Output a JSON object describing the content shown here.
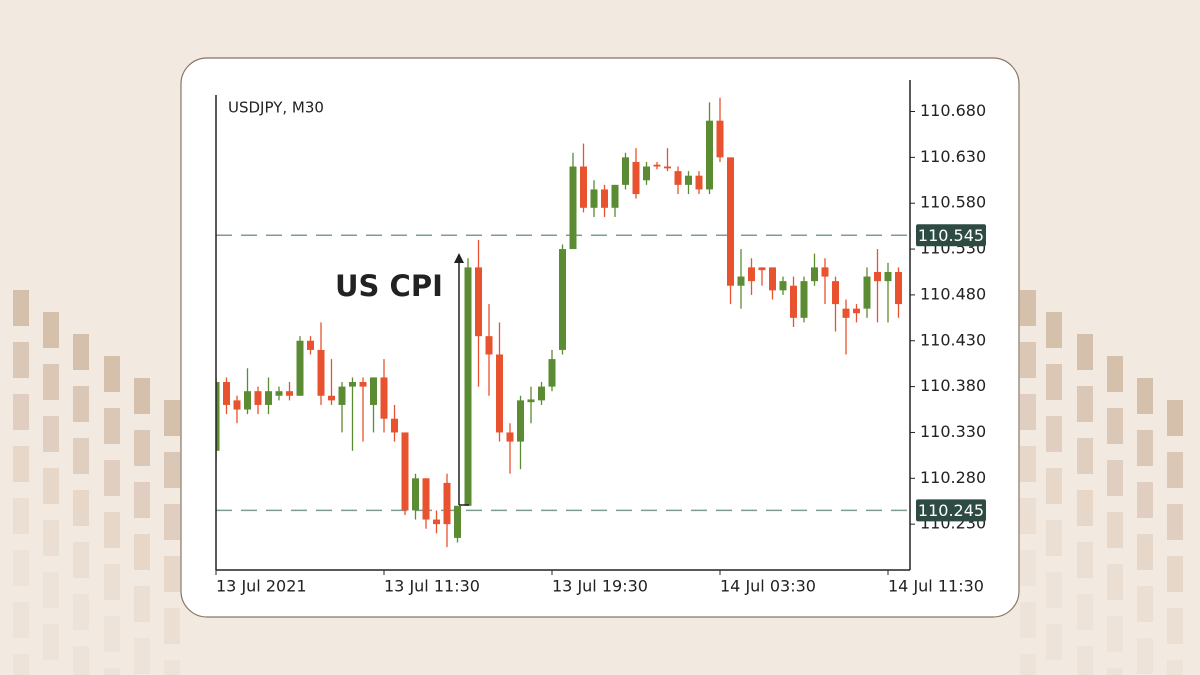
{
  "chart_data": {
    "type": "candlestick",
    "title": "USDJPY, M30",
    "annotation": "US CPI",
    "categories": [
      "13 Jul 2021",
      null,
      null,
      null,
      null,
      null,
      null,
      null,
      null,
      null,
      null,
      null,
      null,
      null,
      null,
      null,
      "13 Jul 11:30",
      null,
      null,
      null,
      null,
      null,
      null,
      null,
      null,
      null,
      null,
      null,
      null,
      null,
      null,
      null,
      "13 Jul 19:30",
      null,
      null,
      null,
      null,
      null,
      null,
      null,
      null,
      null,
      null,
      null,
      null,
      null,
      null,
      null,
      "14 Jul 03:30",
      null,
      null,
      null,
      null,
      null,
      null,
      null,
      null,
      null,
      null,
      null,
      null,
      null,
      null,
      null,
      "14 Jul 11:30",
      null
    ],
    "open": [
      110.31,
      110.385,
      110.365,
      110.355,
      110.375,
      110.36,
      110.37,
      110.375,
      110.37,
      110.43,
      110.42,
      110.37,
      110.36,
      110.38,
      110.385,
      110.36,
      110.39,
      110.345,
      110.33,
      110.245,
      110.28,
      110.235,
      110.275,
      110.215,
      110.25,
      110.51,
      110.435,
      110.415,
      110.33,
      110.32,
      110.363,
      110.365,
      110.38,
      110.42,
      110.53,
      110.62,
      110.575,
      110.595,
      110.575,
      110.6,
      110.625,
      110.605,
      110.622,
      110.62,
      110.615,
      110.6,
      110.61,
      110.595,
      110.67,
      110.63,
      110.49,
      110.51,
      110.51,
      110.51,
      110.485,
      110.49,
      110.455,
      110.495,
      110.51,
      110.495,
      110.465,
      110.465,
      110.465,
      110.505,
      110.495,
      110.505
    ],
    "high": [
      110.39,
      110.39,
      110.37,
      110.4,
      110.38,
      110.39,
      110.38,
      110.385,
      110.435,
      110.435,
      110.45,
      110.41,
      110.385,
      110.39,
      110.39,
      110.39,
      110.41,
      110.36,
      110.33,
      110.285,
      110.28,
      110.245,
      110.285,
      110.25,
      110.52,
      110.54,
      110.47,
      110.45,
      110.34,
      110.37,
      110.38,
      110.385,
      110.42,
      110.535,
      110.635,
      110.645,
      110.605,
      110.6,
      110.6,
      110.635,
      110.64,
      110.625,
      110.625,
      110.64,
      110.62,
      110.615,
      110.615,
      110.69,
      110.695,
      110.63,
      110.53,
      110.52,
      110.51,
      110.51,
      110.5,
      110.5,
      110.5,
      110.525,
      110.52,
      110.5,
      110.475,
      110.47,
      110.51,
      110.53,
      110.515,
      110.51
    ],
    "low": [
      110.3,
      110.35,
      110.34,
      110.35,
      110.35,
      110.35,
      110.365,
      110.365,
      110.37,
      110.415,
      110.36,
      110.36,
      110.33,
      110.31,
      110.32,
      110.33,
      110.33,
      110.32,
      110.24,
      110.235,
      110.225,
      110.22,
      110.205,
      110.21,
      110.25,
      110.38,
      110.37,
      110.32,
      110.285,
      110.29,
      110.34,
      110.36,
      110.375,
      110.415,
      110.53,
      110.57,
      110.565,
      110.565,
      110.565,
      110.595,
      110.585,
      110.6,
      110.617,
      110.615,
      110.59,
      110.59,
      110.59,
      110.59,
      110.625,
      110.47,
      110.465,
      110.48,
      110.49,
      110.475,
      110.48,
      110.445,
      110.45,
      110.49,
      110.47,
      110.44,
      110.415,
      110.45,
      110.455,
      110.45,
      110.45,
      110.455
    ],
    "close": [
      110.385,
      110.36,
      110.355,
      110.375,
      110.36,
      110.375,
      110.375,
      110.37,
      110.43,
      110.42,
      110.37,
      110.365,
      110.38,
      110.385,
      110.38,
      110.39,
      110.345,
      110.33,
      110.245,
      110.28,
      110.235,
      110.23,
      110.23,
      110.25,
      110.51,
      110.435,
      110.415,
      110.33,
      110.32,
      110.365,
      110.366,
      110.38,
      110.41,
      110.53,
      110.62,
      110.575,
      110.595,
      110.575,
      110.6,
      110.63,
      110.59,
      110.62,
      110.62,
      110.618,
      110.6,
      110.61,
      110.595,
      110.67,
      110.63,
      110.49,
      110.5,
      110.495,
      110.507,
      110.485,
      110.495,
      110.455,
      110.495,
      110.51,
      110.5,
      110.47,
      110.455,
      110.46,
      110.5,
      110.495,
      110.505,
      110.47
    ],
    "up_color": "#5b8c33",
    "down_color": "#e8522f",
    "hlines": [
      110.545,
      110.245
    ],
    "hline_color": "#7e9c93",
    "ylim": [
      110.18,
      110.698
    ],
    "yticks": [
      {
        "value": 110.23,
        "label": "110.230"
      },
      {
        "value": 110.28,
        "label": "110.280"
      },
      {
        "value": 110.33,
        "label": "110.330"
      },
      {
        "value": 110.38,
        "label": "110.380"
      },
      {
        "value": 110.43,
        "label": "110.430"
      },
      {
        "value": 110.48,
        "label": "110.480"
      },
      {
        "value": 110.53,
        "label": "110.530"
      },
      {
        "value": 110.58,
        "label": "110.580"
      },
      {
        "value": 110.63,
        "label": "110.630"
      },
      {
        "value": 110.68,
        "label": "110.680"
      }
    ]
  }
}
